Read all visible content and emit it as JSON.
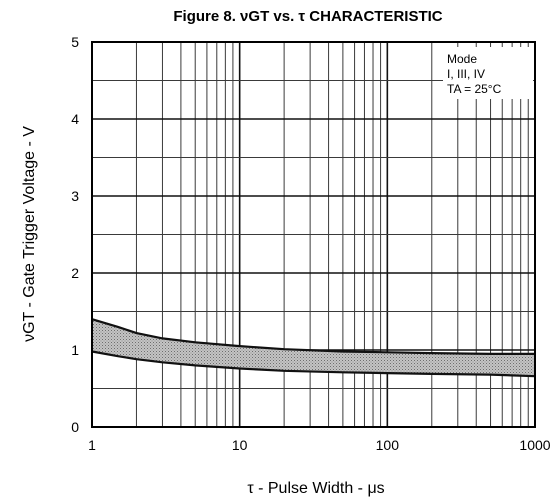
{
  "chart_data": {
    "type": "area",
    "title": "Figure 8.  νGT vs. τ CHARACTERISTIC",
    "xlabel": "τ - Pulse Width - μs",
    "ylabel": "νGT - Gate Trigger Voltage - V",
    "x_scale": "log",
    "xlim": [
      1,
      1000
    ],
    "ylim": [
      0,
      5
    ],
    "x_ticks": [
      "1",
      "10",
      "100",
      "1000"
    ],
    "y_ticks": [
      "0",
      "1",
      "2",
      "3",
      "4",
      "5"
    ],
    "grid": true,
    "annotation": [
      "Mode",
      "I, III, IV",
      "TA = 25°C"
    ],
    "series": [
      {
        "values": [
          {
            "x": 1,
            "y": 1.4
          },
          {
            "x": 1.5,
            "y": 1.3
          },
          {
            "x": 2,
            "y": 1.22
          },
          {
            "x": 3,
            "y": 1.15
          },
          {
            "x": 5,
            "y": 1.1
          },
          {
            "x": 10,
            "y": 1.05
          },
          {
            "x": 20,
            "y": 1.01
          },
          {
            "x": 50,
            "y": 0.98
          },
          {
            "x": 100,
            "y": 0.97
          },
          {
            "x": 200,
            "y": 0.96
          },
          {
            "x": 500,
            "y": 0.95
          },
          {
            "x": 1000,
            "y": 0.95
          }
        ]
      },
      {
        "values": [
          {
            "x": 1,
            "y": 0.98
          },
          {
            "x": 1.5,
            "y": 0.92
          },
          {
            "x": 2,
            "y": 0.88
          },
          {
            "x": 3,
            "y": 0.84
          },
          {
            "x": 5,
            "y": 0.8
          },
          {
            "x": 10,
            "y": 0.76
          },
          {
            "x": 20,
            "y": 0.73
          },
          {
            "x": 50,
            "y": 0.71
          },
          {
            "x": 100,
            "y": 0.7
          },
          {
            "x": 200,
            "y": 0.69
          },
          {
            "x": 500,
            "y": 0.68
          },
          {
            "x": 1000,
            "y": 0.66
          }
        ]
      }
    ],
    "colors": {
      "band_fill": "#b5b5b5",
      "curve": "#111111",
      "grid": "#3a3a3a"
    }
  }
}
